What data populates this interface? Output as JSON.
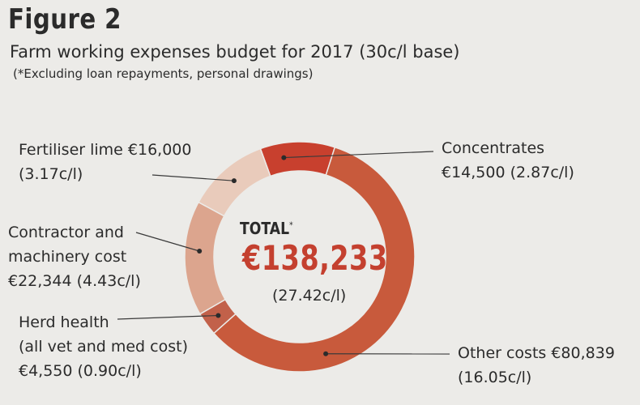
{
  "figure": {
    "label": "Figure 2",
    "subtitle": "Farm working expenses budget for 2017 (30c/l base)",
    "note": "(*Excluding loan repayments, personal drawings)"
  },
  "center": {
    "total_label": "TOTAL",
    "total_mark": "*",
    "amount": "€138,233",
    "rate": "(27.42c/l)"
  },
  "chart_data": {
    "type": "pie",
    "donut": true,
    "total": 138233,
    "slices": [
      {
        "name": "Concentrates",
        "value": 14500,
        "rate": "€14,500 (2.87c/l)",
        "color": "#c8402e",
        "label_lines": [
          "Concentrates",
          "€14,500 (2.87c/l)"
        ]
      },
      {
        "name": "Other costs",
        "value": 80839,
        "rate": "(16.05c/l)",
        "color": "#c85a3c",
        "label_lines": [
          "Other costs €80,839",
          "(16.05c/l)"
        ]
      },
      {
        "name": "Herd health",
        "value": 4550,
        "rate": "€4,550 (0.90c/l)",
        "color": "#c2614a",
        "label_lines": [
          "Herd health",
          "(all vet and med cost)",
          "€4,550 (0.90c/l)"
        ]
      },
      {
        "name": "Contractor and machinery cost",
        "value": 22344,
        "rate": "€22,344 (4.43c/l)",
        "color": "#dca58e",
        "label_lines": [
          "Contractor and",
          "machinery cost",
          "€22,344 (4.43c/l)"
        ]
      },
      {
        "name": "Fertiliser lime",
        "value": 16000,
        "rate": "(3.17c/l)",
        "color": "#e9cbbb",
        "label_lines": [
          "Fertiliser lime €16,000",
          "(3.17c/l)"
        ]
      }
    ]
  }
}
